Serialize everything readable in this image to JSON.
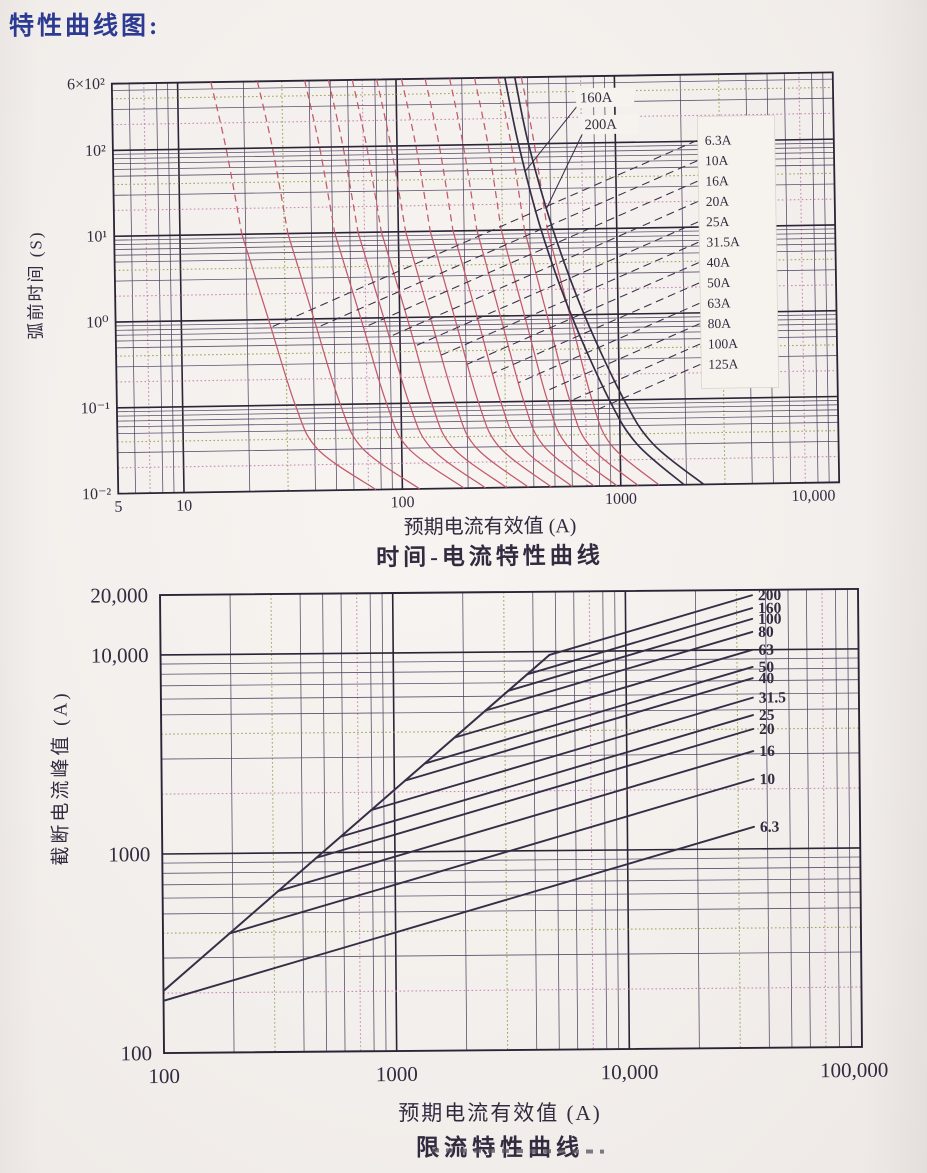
{
  "page": {
    "title": "特性曲线图:"
  },
  "colors": {
    "title_blue": "#2c3a92",
    "ink": "#322b40",
    "grid_major": "#2b2336",
    "grid_minor": "#4c3f5f",
    "grid_olive": "#93a04e",
    "grid_pink": "#c082ae",
    "red_curve": "#c2596a",
    "dark_curve": "#362e46",
    "leader": "#362e46",
    "paper_box": "#f6f3ef"
  },
  "chart_data": [
    {
      "type": "line",
      "title": "时间-电流特性曲线",
      "xlabel": "预期电流有效值 (A)",
      "ylabel": "弧前时间 (S)",
      "x_scale": "log",
      "y_scale": "log",
      "xlim": [
        5,
        10000
      ],
      "ylim": [
        0.01,
        600
      ],
      "x_ticks": [
        {
          "label": "5",
          "value": 5
        },
        {
          "label": "10",
          "value": 10
        },
        {
          "label": "100",
          "value": 100
        },
        {
          "label": "1000",
          "value": 1000
        },
        {
          "label": "10,000",
          "value": 10000
        }
      ],
      "y_ticks": [
        {
          "label": "6×10²",
          "value": 600
        },
        {
          "label": "10²",
          "value": 100
        },
        {
          "label": "10¹",
          "value": 10
        },
        {
          "label": "10⁰",
          "value": 1
        },
        {
          "label": "10⁻¹",
          "value": 0.1
        },
        {
          "label": "10⁻²",
          "value": 0.01
        }
      ],
      "times_s": [
        600,
        100,
        10,
        1,
        0.1,
        0.03,
        0.01
      ],
      "series": [
        {
          "name": "6.3A",
          "style": "red",
          "currents": [
            14.2,
            16.5,
            19.2,
            25.1,
            32.8,
            41.4,
            75.6
          ]
        },
        {
          "name": "10A",
          "style": "red",
          "currents": [
            23.2,
            26.9,
            31.2,
            40.5,
            52.7,
            66.4,
            120
          ]
        },
        {
          "name": "16A",
          "style": "red",
          "currents": [
            38.2,
            44.2,
            51.1,
            66.3,
            85.9,
            107,
            192
          ]
        },
        {
          "name": "20A",
          "style": "red",
          "currents": [
            49.1,
            56.6,
            65.4,
            84.5,
            109,
            136,
            240
          ]
        },
        {
          "name": "25A",
          "style": "red",
          "currents": [
            63.1,
            72.6,
            83.6,
            108,
            138,
            171,
            300
          ]
        },
        {
          "name": "31.5A",
          "style": "red",
          "currents": [
            81.6,
            93.7,
            108,
            138,
            177,
            218,
            378
          ]
        },
        {
          "name": "40A",
          "style": "red",
          "currents": [
            106,
            122,
            140,
            178,
            226,
            279,
            480
          ]
        },
        {
          "name": "50A",
          "style": "red",
          "currents": [
            136,
            156,
            178,
            226,
            286,
            352,
            600
          ]
        },
        {
          "name": "63A",
          "style": "red",
          "currents": [
            176,
            201,
            229,
            289,
            365,
            447,
            756
          ]
        },
        {
          "name": "80A",
          "style": "red",
          "currents": [
            229,
            261,
            296,
            373,
            469,
            573,
            960
          ]
        },
        {
          "name": "100A",
          "style": "red",
          "currents": [
            293,
            333,
            378,
            473,
            593,
            722,
            1200
          ]
        },
        {
          "name": "125A",
          "style": "red",
          "currents": [
            375,
            425,
            481,
            601,
            750,
            910,
            1500
          ]
        },
        {
          "name": "160A",
          "style": "dark",
          "currents": [
            315,
            360,
            450,
            610,
            900,
            1200,
            1950
          ]
        },
        {
          "name": "200A",
          "style": "dark",
          "currents": [
            350,
            400,
            510,
            700,
            1050,
            1420,
            2400
          ]
        }
      ],
      "box_labels": [
        "6.3A",
        "10A",
        "16A",
        "20A",
        "25A",
        "31.5A",
        "40A",
        "50A",
        "63A",
        "80A",
        "100A",
        "125A"
      ],
      "top_labels": [
        "160A",
        "200A"
      ]
    },
    {
      "type": "line",
      "title": "限流特性曲线",
      "xlabel": "预期电流有效值 (A)",
      "ylabel": "截断电流峰值 (A)",
      "x_scale": "log",
      "y_scale": "log",
      "xlim": [
        100,
        100000
      ],
      "ylim": [
        100,
        20000
      ],
      "x_ticks": [
        {
          "label": "100",
          "value": 100
        },
        {
          "label": "1000",
          "value": 1000
        },
        {
          "label": "10,000",
          "value": 10000
        },
        {
          "label": "100,000",
          "value": 100000
        }
      ],
      "y_ticks": [
        {
          "label": "20,000",
          "value": 20000
        },
        {
          "label": "10,000",
          "value": 10000
        },
        {
          "label": "1000",
          "value": 1000
        },
        {
          "label": "100",
          "value": 100
        }
      ],
      "prospective_peak_line": {
        "points_xy": [
          [
            100,
            205
          ],
          [
            4690,
            9615
          ]
        ]
      },
      "series": [
        {
          "name": "200",
          "branch_xy": [
            4690,
            9615
          ],
          "end_xy": [
            35000,
            18800
          ]
        },
        {
          "name": "160",
          "branch_xy": [
            3758,
            7704
          ],
          "end_xy": [
            35000,
            16200
          ]
        },
        {
          "name": "100",
          "branch_xy": [
            3112,
            6380
          ],
          "end_xy": [
            35000,
            14300
          ]
        },
        {
          "name": "80",
          "branch_xy": [
            2483,
            5090
          ],
          "end_xy": [
            35000,
            12300
          ]
        },
        {
          "name": "63",
          "branch_xy": [
            1820,
            3731
          ],
          "end_xy": [
            35000,
            10000
          ]
        },
        {
          "name": "50",
          "branch_xy": [
            1352,
            2772
          ],
          "end_xy": [
            35000,
            8200
          ]
        },
        {
          "name": "40",
          "branch_xy": [
            1112,
            2280
          ],
          "end_xy": [
            35000,
            7200
          ]
        },
        {
          "name": "31.5",
          "branch_xy": [
            794,
            1628
          ],
          "end_xy": [
            35000,
            5750
          ]
        },
        {
          "name": "25",
          "branch_xy": [
            586,
            1201
          ],
          "end_xy": [
            35000,
            4700
          ]
        },
        {
          "name": "20",
          "branch_xy": [
            460,
            943
          ],
          "end_xy": [
            35000,
            4000
          ]
        },
        {
          "name": "16",
          "branch_xy": [
            314,
            644
          ],
          "end_xy": [
            35000,
            3100
          ]
        },
        {
          "name": "10",
          "branch_xy": [
            193,
            396
          ],
          "end_xy": [
            35000,
            2240
          ]
        },
        {
          "name": "6.3",
          "branch_xy": [
            100,
            183
          ],
          "end_xy": [
            35000,
            1290
          ]
        }
      ]
    }
  ]
}
